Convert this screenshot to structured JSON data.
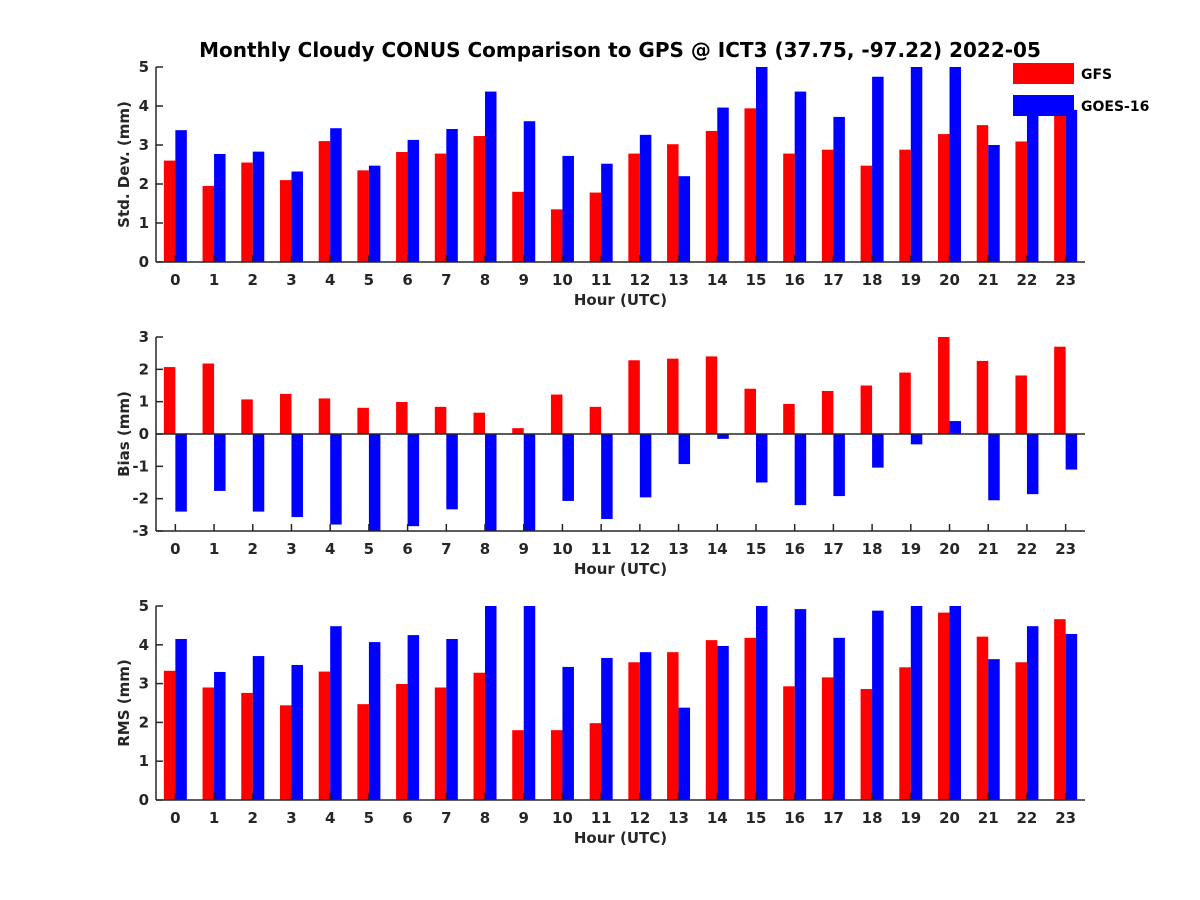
{
  "title": "Monthly Cloudy CONUS Comparison to GPS @ ICT3 (37.75, -97.22) 2022-05",
  "legend": {
    "placement": "top-right",
    "entries": [
      {
        "name": "GFS",
        "color": "#ff0000"
      },
      {
        "name": "GOES-16",
        "color": "#0000ff"
      }
    ]
  },
  "chart_data": [
    {
      "type": "bar",
      "categories": [
        "0",
        "1",
        "2",
        "3",
        "4",
        "5",
        "6",
        "7",
        "8",
        "9",
        "10",
        "11",
        "12",
        "13",
        "14",
        "15",
        "16",
        "17",
        "18",
        "19",
        "20",
        "21",
        "22",
        "23"
      ],
      "xlabel": "Hour (UTC)",
      "ylabel": "Std. Dev. (mm)",
      "ylim": [
        0,
        5
      ],
      "yticks": [
        "0",
        "1",
        "2",
        "3",
        "4",
        "5"
      ],
      "series": [
        {
          "name": "GFS",
          "color": "#ff0000",
          "values": [
            2.6,
            1.95,
            2.55,
            2.1,
            3.1,
            2.35,
            2.82,
            2.78,
            3.23,
            1.8,
            1.35,
            1.78,
            2.78,
            3.02,
            3.36,
            3.94,
            2.78,
            2.88,
            2.47,
            2.88,
            3.28,
            3.51,
            3.09,
            3.8
          ]
        },
        {
          "name": "GOES-16",
          "color": "#0000ff",
          "values": [
            3.38,
            2.77,
            2.83,
            2.32,
            3.43,
            2.47,
            3.13,
            3.41,
            4.37,
            3.61,
            2.72,
            2.52,
            3.26,
            2.2,
            3.96,
            5.0,
            4.37,
            3.72,
            4.75,
            5.0,
            5.0,
            3.0,
            4.05,
            3.9
          ]
        }
      ]
    },
    {
      "type": "bar",
      "categories": [
        "0",
        "1",
        "2",
        "3",
        "4",
        "5",
        "6",
        "7",
        "8",
        "9",
        "10",
        "11",
        "12",
        "13",
        "14",
        "15",
        "16",
        "17",
        "18",
        "19",
        "20",
        "21",
        "22",
        "23"
      ],
      "xlabel": "Hour (UTC)",
      "ylabel": "Bias (mm)",
      "ylim": [
        -3,
        3
      ],
      "yticks": [
        "-3",
        "-2",
        "-1",
        "0",
        "1",
        "2",
        "3"
      ],
      "series": [
        {
          "name": "GFS",
          "color": "#ff0000",
          "values": [
            2.07,
            2.18,
            1.07,
            1.24,
            1.1,
            0.81,
            0.99,
            0.84,
            0.66,
            0.18,
            1.22,
            0.84,
            2.28,
            2.33,
            2.4,
            1.4,
            0.93,
            1.33,
            1.5,
            1.9,
            3.0,
            2.26,
            1.81,
            2.7
          ]
        },
        {
          "name": "GOES-16",
          "color": "#0000ff",
          "values": [
            -2.4,
            -1.76,
            -2.4,
            -2.57,
            -2.8,
            -3.0,
            -2.85,
            -2.33,
            -3.0,
            -3.0,
            -2.07,
            -2.63,
            -1.96,
            -0.93,
            -0.15,
            -1.5,
            -2.2,
            -1.92,
            -1.04,
            -0.32,
            0.4,
            -2.05,
            -1.86,
            -1.1
          ]
        }
      ]
    },
    {
      "type": "bar",
      "categories": [
        "0",
        "1",
        "2",
        "3",
        "4",
        "5",
        "6",
        "7",
        "8",
        "9",
        "10",
        "11",
        "12",
        "13",
        "14",
        "15",
        "16",
        "17",
        "18",
        "19",
        "20",
        "21",
        "22",
        "23"
      ],
      "xlabel": "Hour (UTC)",
      "ylabel": "RMS (mm)",
      "ylim": [
        0,
        5
      ],
      "yticks": [
        "0",
        "1",
        "2",
        "3",
        "4",
        "5"
      ],
      "series": [
        {
          "name": "GFS",
          "color": "#ff0000",
          "values": [
            3.33,
            2.9,
            2.76,
            2.44,
            3.31,
            2.47,
            2.99,
            2.9,
            3.28,
            1.8,
            1.8,
            1.98,
            3.55,
            3.81,
            4.12,
            4.18,
            2.93,
            3.16,
            2.86,
            3.42,
            4.83,
            4.21,
            3.55,
            4.66
          ]
        },
        {
          "name": "GOES-16",
          "color": "#0000ff",
          "values": [
            4.15,
            3.3,
            3.71,
            3.48,
            4.48,
            4.07,
            4.25,
            4.15,
            5.0,
            5.0,
            3.43,
            3.66,
            3.81,
            2.38,
            3.97,
            5.0,
            4.92,
            4.18,
            4.88,
            5.0,
            5.0,
            3.63,
            4.48,
            4.28
          ]
        }
      ]
    }
  ]
}
